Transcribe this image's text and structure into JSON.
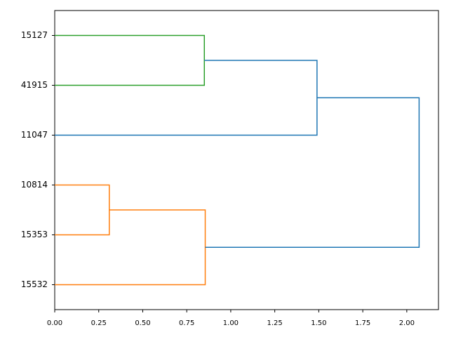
{
  "chart_data": {
    "type": "dendrogram",
    "orientation": "left",
    "categories": [
      "15532",
      "15353",
      "10814",
      "11047",
      "41915",
      "15127"
    ],
    "ylim": [
      0,
      60
    ],
    "xlim": [
      0,
      2.18
    ],
    "xticks": [
      {
        "value": 0,
        "label": "0.00"
      },
      {
        "value": 0.25,
        "label": "0.25"
      },
      {
        "value": 0.5,
        "label": "0.50"
      },
      {
        "value": 0.75,
        "label": "0.75"
      },
      {
        "value": 1,
        "label": "1.00"
      },
      {
        "value": 1.25,
        "label": "1.25"
      },
      {
        "value": 1.5,
        "label": "1.50"
      },
      {
        "value": 1.75,
        "label": "1.75"
      },
      {
        "value": 2,
        "label": "2.00"
      }
    ],
    "links": [
      {
        "color": "#ff7f0e",
        "x": [
          0,
          0.31,
          0.31,
          0
        ],
        "y": [
          25,
          25,
          15,
          15
        ]
      },
      {
        "color": "#ff7f0e",
        "x": [
          0,
          0.855,
          0.855,
          0.31
        ],
        "y": [
          5,
          5,
          20,
          20
        ]
      },
      {
        "color": "#2ca02c",
        "x": [
          0,
          0.85,
          0.85,
          0
        ],
        "y": [
          55,
          55,
          45,
          45
        ]
      },
      {
        "color": "#1f77b4",
        "x": [
          0,
          1.49,
          1.49,
          0.85
        ],
        "y": [
          35,
          35,
          50,
          50
        ]
      },
      {
        "color": "#1f77b4",
        "x": [
          0.855,
          2.07,
          2.07,
          1.49
        ],
        "y": [
          12.5,
          12.5,
          42.5,
          42.5
        ]
      }
    ]
  }
}
